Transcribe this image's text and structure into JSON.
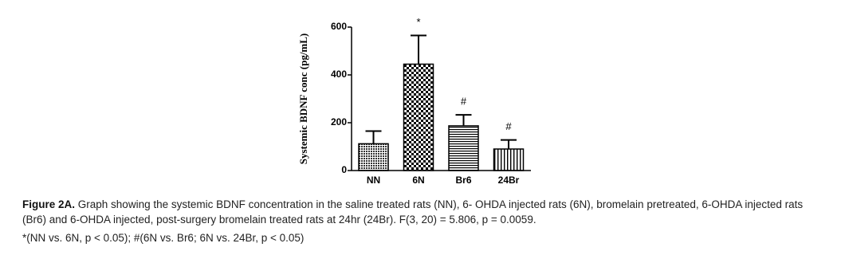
{
  "chart_data": {
    "type": "bar",
    "y_label": "Systemic BDNF conc (pg/mL)",
    "categories": [
      "NN",
      "6N",
      "Br6",
      "24Br"
    ],
    "values": [
      112,
      445,
      187,
      90
    ],
    "errors": [
      53,
      120,
      46,
      38
    ],
    "annotations": [
      null,
      "*",
      "#",
      "#"
    ],
    "fills": [
      "crosshatch",
      "checker",
      "horizontal",
      "vertical"
    ],
    "ylim": [
      0,
      600
    ],
    "yticks": [
      0,
      200,
      400,
      600
    ],
    "grid": false
  },
  "caption": {
    "label": "Figure 2A.",
    "text": "Graph showing the systemic BDNF concentration in the saline treated rats (NN), 6- OHDA injected rats (6N), bromelain pretreated, 6-OHDA injected rats (Br6) and 6-OHDA injected, post-surgery bromelain treated rats at 24hr (24Br). F(3, 20) = 5.806, p = 0.0059.",
    "footnote": "*(NN vs. 6N, p < 0.05); #(6N vs. Br6; 6N vs. 24Br, p < 0.05)"
  }
}
